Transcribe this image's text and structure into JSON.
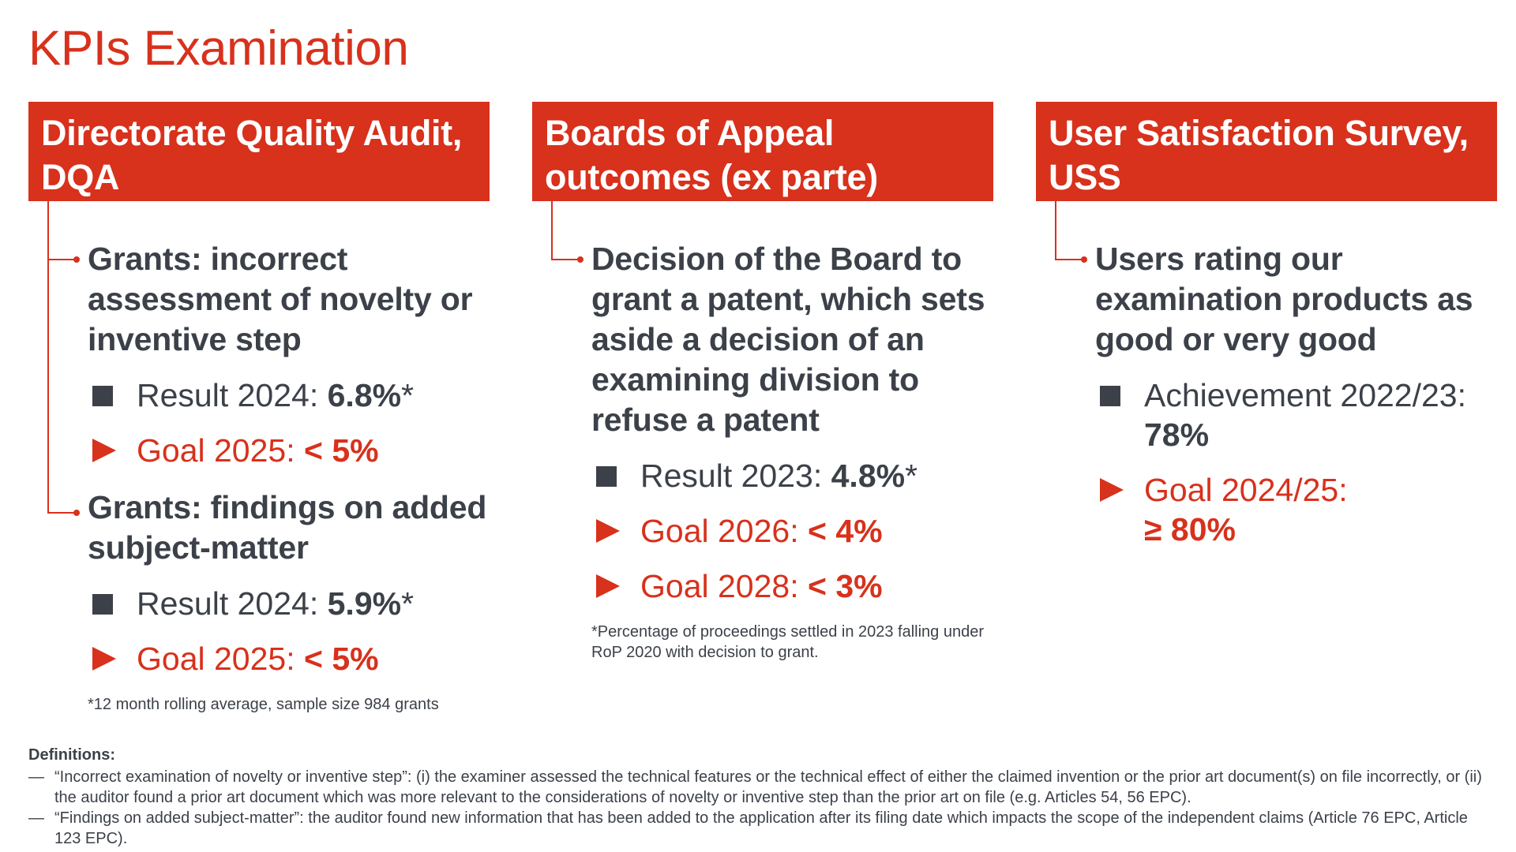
{
  "page": {
    "title": "KPIs Examination"
  },
  "columns": [
    {
      "header": "Directorate Quality Audit, DQA",
      "kpis": [
        {
          "text": "Grants: incorrect assessment of novelty or inventive step",
          "result_label": "Result 2024:",
          "result_value": "6.8%",
          "result_mark": "*",
          "goal_label": "Goal 2025:",
          "goal_value": "< 5%"
        },
        {
          "text": "Grants: findings on added subject-matter",
          "result_label": "Result 2024:",
          "result_value": "5.9%",
          "result_mark": "*",
          "goal_label": "Goal 2025:",
          "goal_value": "< 5%"
        }
      ],
      "footnote": "*12 month rolling average, sample size 984 grants"
    },
    {
      "header": "Boards of Appeal outcomes (ex parte)",
      "kpis": [
        {
          "text": "Decision of the Board to grant a patent, which sets aside a decision of an examining division to refuse a patent",
          "result_label": "Result 2023:",
          "result_value": "4.8%",
          "result_mark": "*",
          "goals": [
            {
              "label": "Goal 2026:",
              "value": "< 4%"
            },
            {
              "label": "Goal 2028:",
              "value": "< 3%"
            }
          ]
        }
      ],
      "footnote": "*Percentage of proceedings settled in 2023 falling under RoP 2020 with decision to grant."
    },
    {
      "header": "User Satisfaction Survey, USS",
      "kpis": [
        {
          "text": "Users rating our examination products as good or very good",
          "result_label": "Achievement 2022/23:",
          "result_value": "78%",
          "goal_label": "Goal 2024/25:",
          "goal_value": "≥ 80%"
        }
      ]
    }
  ],
  "definitions": {
    "title": "Definitions:",
    "dash": "—",
    "items": [
      "“Incorrect examination of novelty or inventive step”: (i) the examiner assessed the technical features or the technical effect of either the claimed invention or the prior art document(s) on file incorrectly, or (ii) the auditor found a prior art document which was more relevant to the considerations of novelty or inventive step than the prior art on file (e.g. Articles 54, 56 EPC).",
      "“Findings on added subject-matter”: the auditor found new information that has been added to the application after its filing date which impacts the scope of the independent claims (Article 76 EPC, Article 123 EPC)."
    ]
  },
  "colors": {
    "accent": "#d8311c",
    "text": "#3c4149",
    "background": "#ffffff"
  }
}
